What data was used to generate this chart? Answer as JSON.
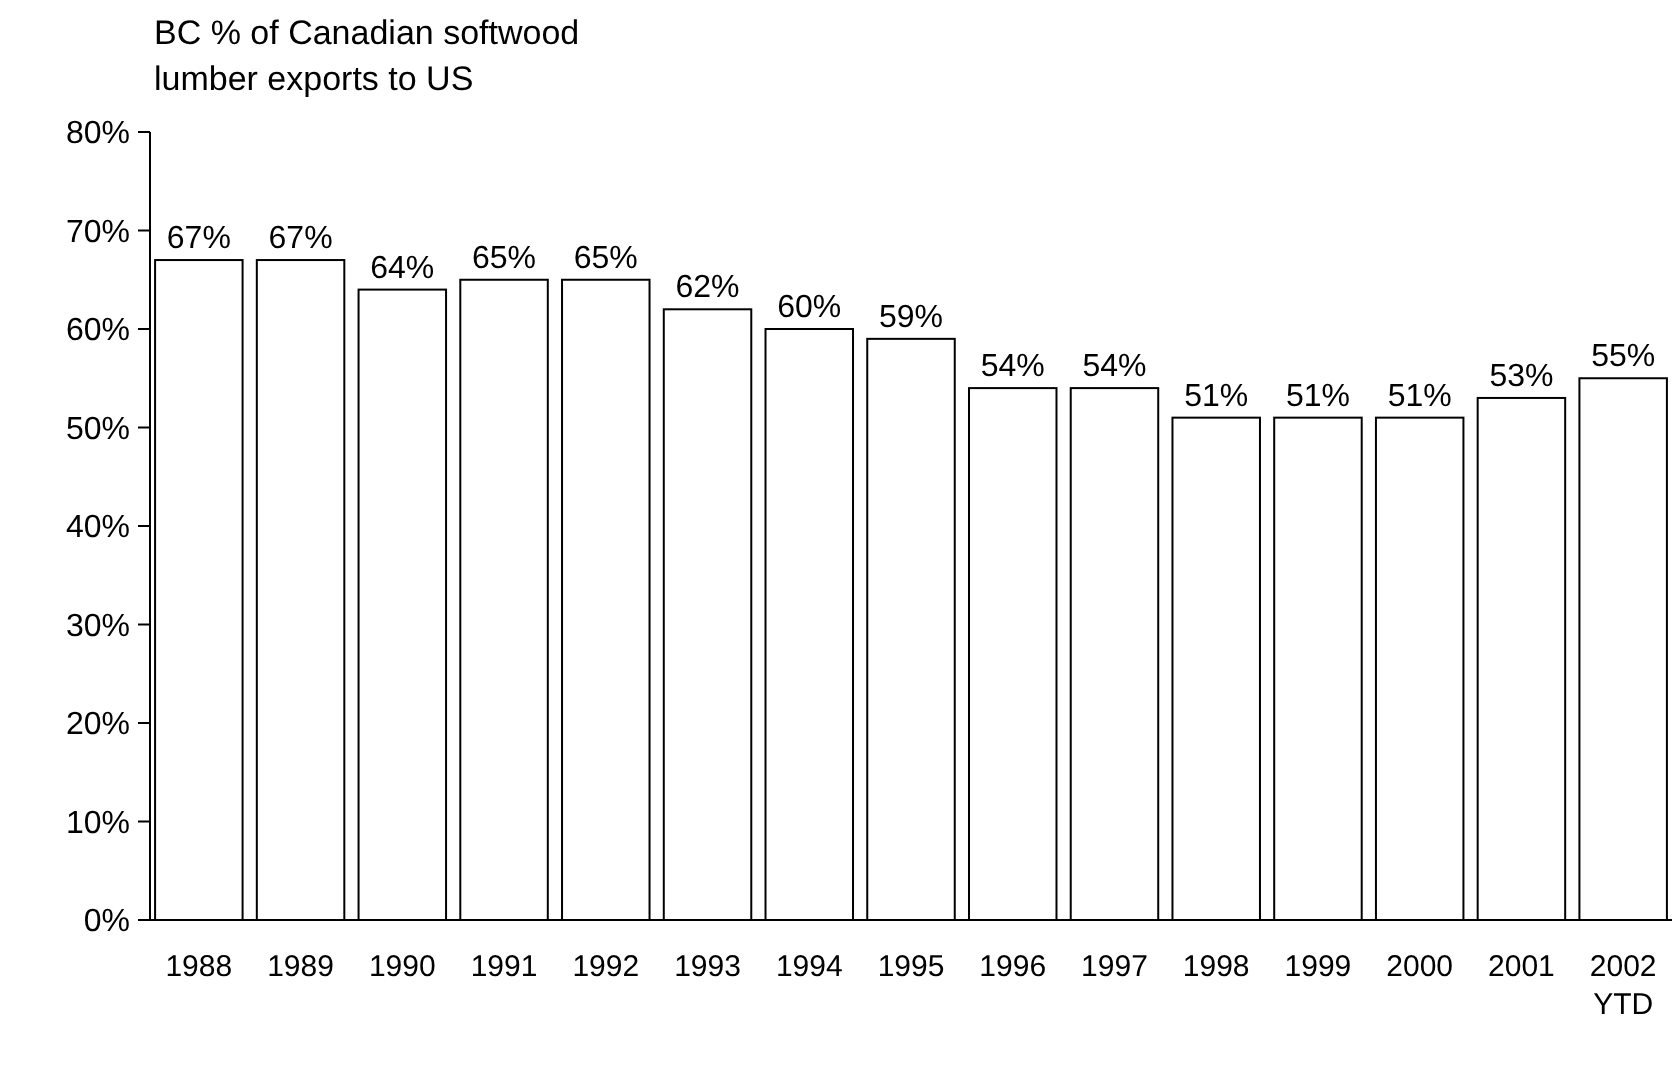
{
  "chart_data": {
    "type": "bar",
    "title": "BC % of Canadian softwood lumber exports to US",
    "categories": [
      "1988",
      "1989",
      "1990",
      "1991",
      "1992",
      "1993",
      "1994",
      "1995",
      "1996",
      "1997",
      "1998",
      "1999",
      "2000",
      "2001",
      "2002 YTD"
    ],
    "values": [
      67,
      67,
      64,
      65,
      65,
      62,
      60,
      59,
      54,
      54,
      51,
      51,
      51,
      53,
      55
    ],
    "value_labels": [
      "67%",
      "67%",
      "64%",
      "65%",
      "65%",
      "62%",
      "60%",
      "59%",
      "54%",
      "54%",
      "51%",
      "51%",
      "51%",
      "53%",
      "55%"
    ],
    "color": "#ffffff",
    "ylim": [
      0,
      80
    ],
    "yticks": [
      {
        "value": 0,
        "label": "0%"
      },
      {
        "value": 10,
        "label": "10%"
      },
      {
        "value": 20,
        "label": "20%"
      },
      {
        "value": 30,
        "label": "30%"
      },
      {
        "value": 40,
        "label": "40%"
      },
      {
        "value": 50,
        "label": "50%"
      },
      {
        "value": 60,
        "label": "60%"
      },
      {
        "value": 70,
        "label": "70%"
      },
      {
        "value": 80,
        "label": "80%"
      }
    ],
    "grid": false
  }
}
